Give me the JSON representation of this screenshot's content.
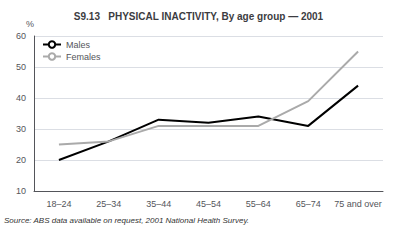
{
  "chart_data": {
    "type": "line",
    "title": "S9.13   PHYSICAL INACTIVITY, By age group — 2001",
    "categories": [
      "18–24",
      "25–34",
      "35–44",
      "45–54",
      "55–64",
      "65–74",
      "75 and over"
    ],
    "series": [
      {
        "name": "Males",
        "color": "#000000",
        "values": [
          20,
          26,
          33,
          32,
          34,
          31,
          44
        ]
      },
      {
        "name": "Females",
        "color": "#aaaaaa",
        "values": [
          25,
          26,
          31,
          31,
          31,
          39,
          55
        ]
      }
    ],
    "ylabel": "%",
    "ylim": [
      10,
      60
    ],
    "yticks": [
      10,
      20,
      30,
      40,
      50,
      60
    ],
    "grid": true,
    "legend": "upper left",
    "source": "Source: ABS data available on request, 2001 National Health Survey."
  }
}
